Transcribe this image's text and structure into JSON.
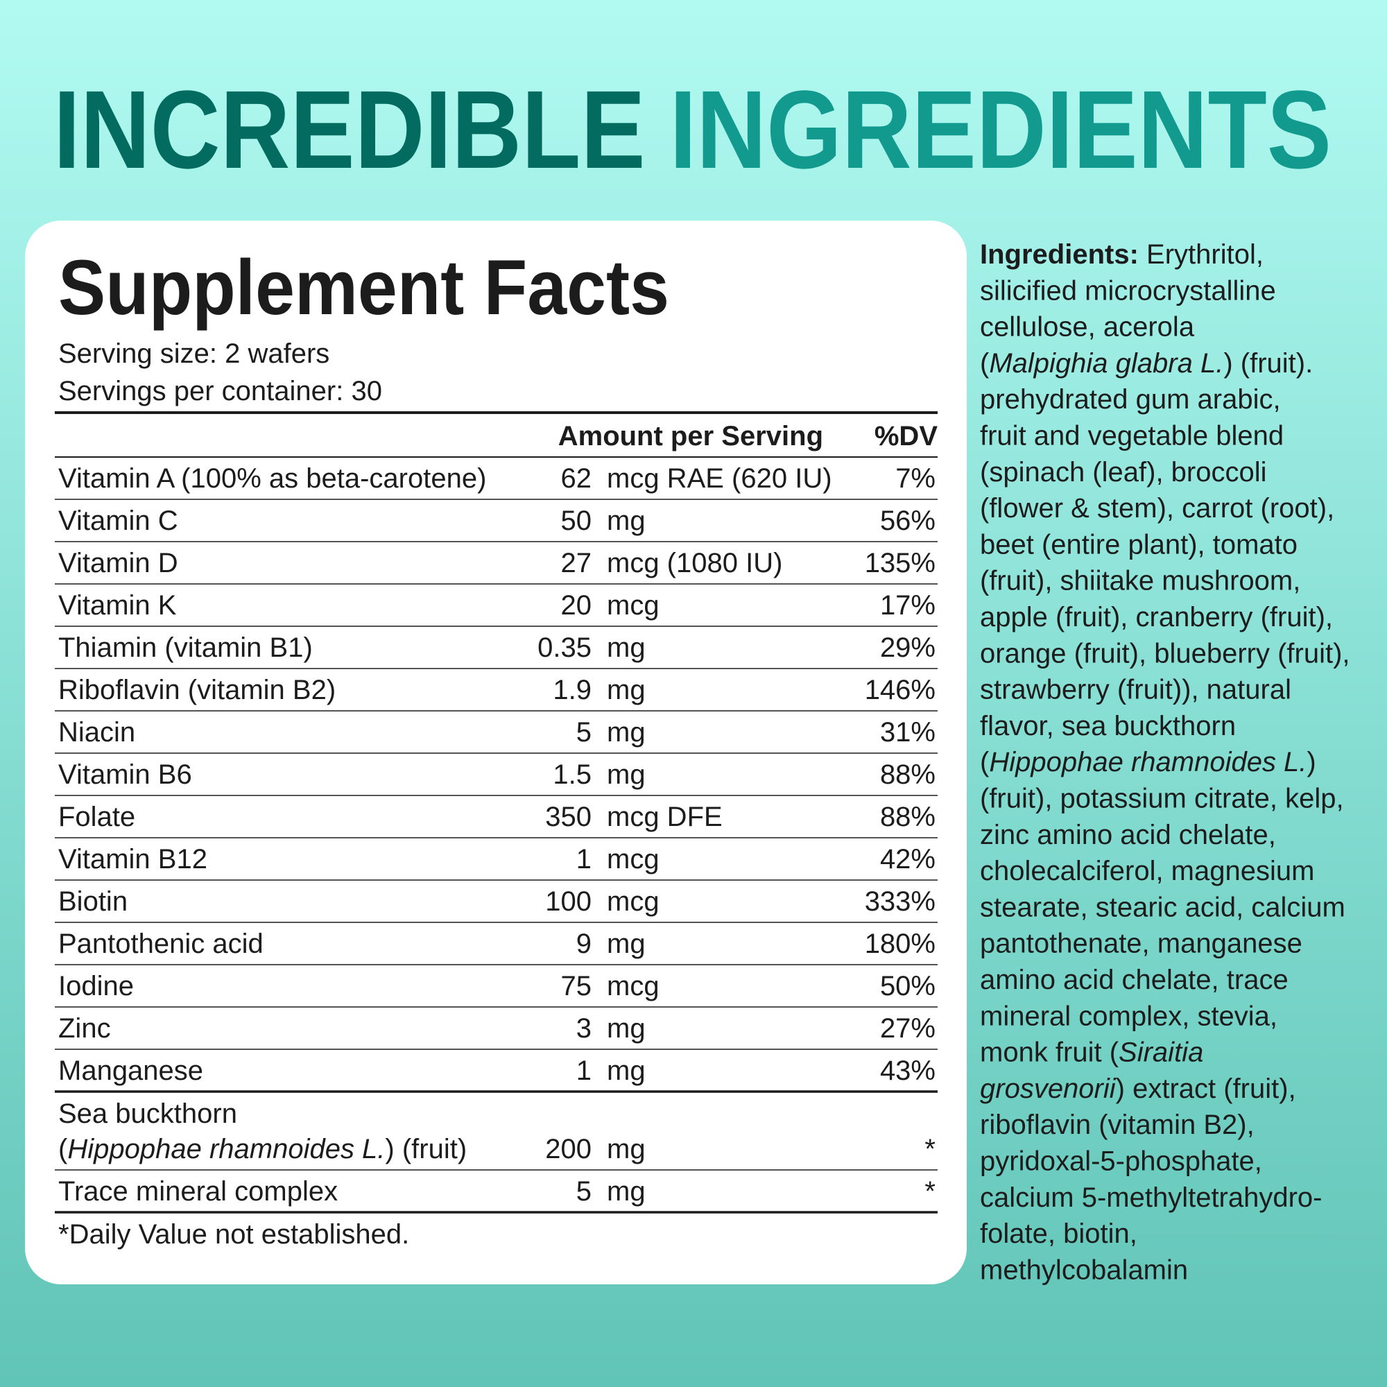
{
  "title": [
    {
      "text": "INCREDIBLE",
      "color": "#046b61"
    },
    {
      "text": "INGREDIENTS",
      "color": "#139a8e"
    }
  ],
  "facts": {
    "title": "Supplement Facts",
    "serving_size": "Serving size: 2 wafers",
    "servings_per_container": "Servings per container: 30",
    "columns": [
      "Amount per Serving",
      "%DV"
    ],
    "sections": [
      {
        "rows": [
          {
            "name": "Vitamin A (100% as beta-carotene)",
            "amount": 62,
            "unit": "mcg RAE (620 IU)",
            "dv": "7%"
          },
          {
            "name": "Vitamin C",
            "amount": 50,
            "unit": "mg",
            "dv": "56%"
          },
          {
            "name": "Vitamin D",
            "amount": 27,
            "unit": "mcg (1080 IU)",
            "dv": "135%"
          },
          {
            "name": "Vitamin K",
            "amount": 20,
            "unit": "mcg",
            "dv": "17%"
          },
          {
            "name": "Thiamin (vitamin B1)",
            "amount": 0.35,
            "unit": "mg",
            "dv": "29%"
          },
          {
            "name": "Riboflavin (vitamin B2)",
            "amount": 1.9,
            "unit": "mg",
            "dv": "146%"
          },
          {
            "name": "Niacin",
            "amount": 5,
            "unit": "mg",
            "dv": "31%"
          },
          {
            "name": "Vitamin B6",
            "amount": 1.5,
            "unit": "mg",
            "dv": "88%"
          },
          {
            "name": "Folate",
            "amount": 350,
            "unit": "mcg DFE",
            "dv": "88%"
          },
          {
            "name": "Vitamin B12",
            "amount": 1,
            "unit": "mcg",
            "dv": "42%"
          },
          {
            "name": "Biotin",
            "amount": 100,
            "unit": "mcg",
            "dv": "333%"
          },
          {
            "name": "Pantothenic acid",
            "amount": 9,
            "unit": "mg",
            "dv": "180%"
          },
          {
            "name": "Iodine",
            "amount": 75,
            "unit": "mcg",
            "dv": "50%"
          },
          {
            "name": "Zinc",
            "amount": 3,
            "unit": "mg",
            "dv": "27%"
          },
          {
            "name": "Manganese",
            "amount": 1,
            "unit": "mg",
            "dv": "43%"
          }
        ]
      },
      {
        "rows": [
          {
            "name": [
              [
                "Sea buckthorn"
              ],
              [
                "(",
                {
                  "text": "Hippophae rhamnoides L.",
                  "style": "italic"
                },
                ") (fruit)"
              ]
            ],
            "amount": 200,
            "unit": "mg",
            "dv": "*"
          },
          {
            "name": "Trace mineral complex",
            "amount": 5,
            "unit": "mg",
            "dv": "*"
          }
        ]
      }
    ],
    "footnote": "*Daily Value not established."
  },
  "ingredients": {
    "lines": [
      [
        {
          "text": "Ingredients:",
          "style": "bold"
        },
        " Erythritol,"
      ],
      [
        "silicified microcrystalline"
      ],
      [
        "cellulose, acerola"
      ],
      [
        "(",
        {
          "text": "Malpighia glabra L.",
          "style": "italic"
        },
        ") (fruit)."
      ],
      [
        "prehydrated gum arabic,"
      ],
      [
        "fruit and vegetable blend"
      ],
      [
        "(spinach (leaf), broccoli"
      ],
      [
        "(flower & stem), carrot (root),"
      ],
      [
        "beet (entire plant), tomato"
      ],
      [
        "(fruit), shiitake mushroom,"
      ],
      [
        "apple (fruit), cranberry (fruit),"
      ],
      [
        "orange (fruit), blueberry (fruit),"
      ],
      [
        "strawberry (fruit)), natural"
      ],
      [
        "flavor, sea buckthorn"
      ],
      [
        "(",
        {
          "text": "Hippophae rhamnoides L.",
          "style": "italic"
        },
        ")"
      ],
      [
        "(fruit), potassium citrate, kelp,"
      ],
      [
        "zinc amino acid chelate,"
      ],
      [
        "cholecalciferol, magnesium"
      ],
      [
        "stearate, stearic acid, calcium"
      ],
      [
        "pantothenate, manganese"
      ],
      [
        "amino acid chelate, trace"
      ],
      [
        "mineral complex, stevia,"
      ],
      [
        "monk fruit (",
        {
          "text": "Siraitia",
          "style": "italic"
        }
      ],
      [
        {
          "text": "grosvenorii",
          "style": "italic"
        },
        ") extract (fruit),"
      ],
      [
        "riboflavin (vitamin B2),"
      ],
      [
        "pyridoxal-5-phosphate,"
      ],
      [
        "calcium 5-methyltetrahydro-"
      ],
      [
        "folate, biotin,"
      ],
      [
        "methylcobalamin"
      ]
    ]
  }
}
